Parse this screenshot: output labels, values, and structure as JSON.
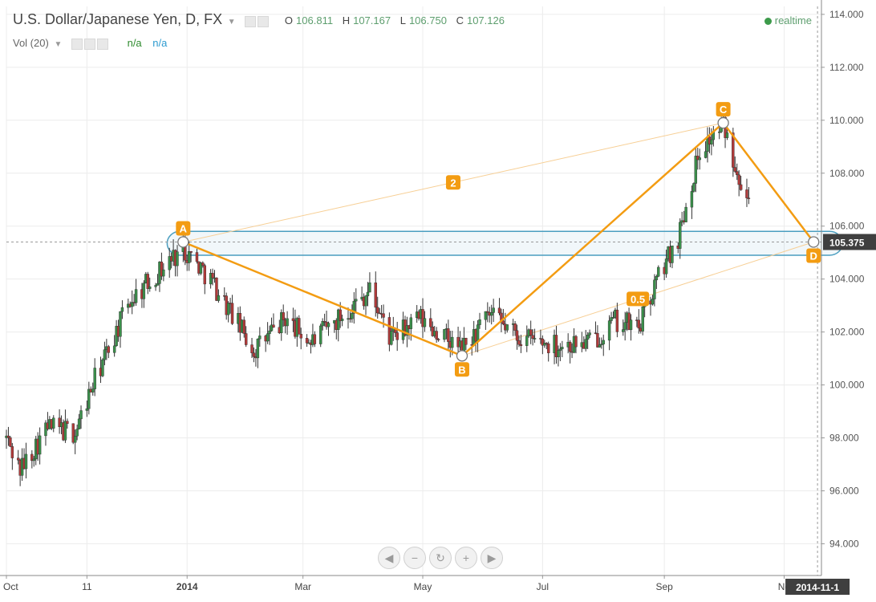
{
  "legend": {
    "title": "U.S. Dollar/Japanese Yen, D, FX",
    "ohlc": {
      "O": "106.811",
      "H": "107.167",
      "L": "106.750",
      "C": "107.126"
    },
    "vol_label": "Vol (20)",
    "vol_values": [
      "n/a",
      "n/a"
    ],
    "status": "realtime"
  },
  "chart_data": {
    "type": "candlestick",
    "y_axis": {
      "ticks": [
        "94.000",
        "96.000",
        "98.000",
        "100.000",
        "102.000",
        "104.000",
        "106.000",
        "108.000",
        "110.000",
        "112.000",
        "114.000"
      ],
      "range": [
        92.8,
        114.3
      ],
      "side": "right"
    },
    "x_axis": {
      "tick_labels": [
        "Oct",
        "11",
        "2014",
        "Mar",
        "May",
        "Jul",
        "Sep",
        "No"
      ],
      "range": [
        "2013-10-01",
        "2014-11-20"
      ]
    },
    "price_label": "105.375",
    "crosshair_date_label": "2014-11-1",
    "pattern": {
      "points": [
        {
          "label": "A",
          "date": "2013-12-30",
          "price": 105.4
        },
        {
          "label": "B",
          "date": "2014-05-21",
          "price": 101.1
        },
        {
          "label": "C",
          "date": "2014-10-01",
          "price": 109.9
        },
        {
          "label": "D",
          "date": "2014-11-16",
          "price": 105.4
        }
      ],
      "ratios": [
        "2",
        "0.5"
      ],
      "color": "#f39c12"
    },
    "zone": {
      "low": 104.9,
      "high": 105.8,
      "color": "#4a9ec0"
    },
    "colors": {
      "up": "#3a8f4a",
      "down": "#b03a3a"
    },
    "anchors": [
      {
        "date": "2013-10-01",
        "price": 98.0
      },
      {
        "date": "2013-10-08",
        "price": 96.8
      },
      {
        "date": "2013-10-22",
        "price": 98.4
      },
      {
        "date": "2013-11-05",
        "price": 98.2
      },
      {
        "date": "2013-11-15",
        "price": 100.2
      },
      {
        "date": "2013-12-03",
        "price": 103.2
      },
      {
        "date": "2013-12-30",
        "price": 105.2
      },
      {
        "date": "2014-01-13",
        "price": 104.0
      },
      {
        "date": "2014-02-04",
        "price": 101.3
      },
      {
        "date": "2014-02-20",
        "price": 102.5
      },
      {
        "date": "2014-03-05",
        "price": 101.6
      },
      {
        "date": "2014-03-19",
        "price": 102.5
      },
      {
        "date": "2014-04-04",
        "price": 103.6
      },
      {
        "date": "2014-04-15",
        "price": 101.7
      },
      {
        "date": "2014-04-29",
        "price": 102.5
      },
      {
        "date": "2014-05-21",
        "price": 101.3
      },
      {
        "date": "2014-06-04",
        "price": 102.6
      },
      {
        "date": "2014-06-20",
        "price": 101.8
      },
      {
        "date": "2014-07-08",
        "price": 101.5
      },
      {
        "date": "2014-07-25",
        "price": 101.6
      },
      {
        "date": "2014-08-07",
        "price": 102.4
      },
      {
        "date": "2014-08-19",
        "price": 102.2
      },
      {
        "date": "2014-08-29",
        "price": 104.1
      },
      {
        "date": "2014-09-08",
        "price": 105.6
      },
      {
        "date": "2014-09-19",
        "price": 108.9
      },
      {
        "date": "2014-10-01",
        "price": 109.8
      },
      {
        "date": "2014-10-08",
        "price": 108.2
      },
      {
        "date": "2014-10-14",
        "price": 107.0
      }
    ]
  }
}
